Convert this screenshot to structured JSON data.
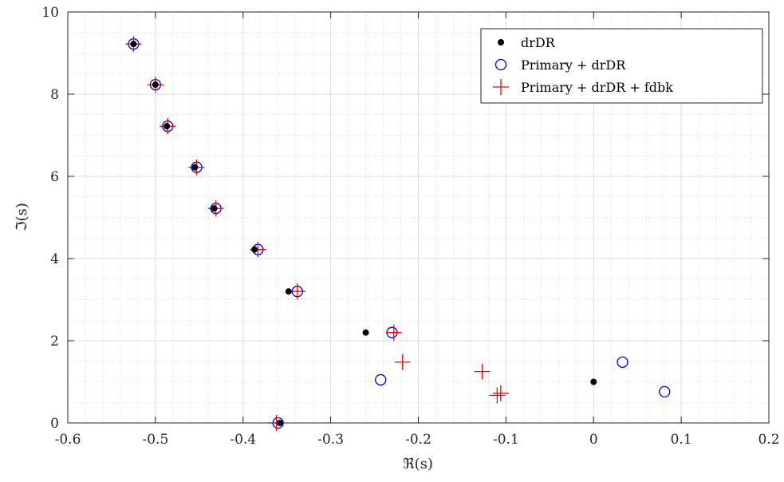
{
  "chart_data": {
    "type": "scatter",
    "xlabel": "ℜ(s)",
    "ylabel": "ℑ(s)",
    "xlim": [
      -0.6,
      0.2
    ],
    "ylim": [
      0,
      10
    ],
    "xticks": [
      -0.6,
      -0.5,
      -0.4,
      -0.3,
      -0.2,
      -0.1,
      0,
      0.1,
      0.2
    ],
    "xtick_labels": [
      "-0.6",
      "-0.5",
      "-0.4",
      "-0.3",
      "-0.2",
      "-0.1",
      "0",
      "0.1",
      "0.2"
    ],
    "yticks": [
      0,
      2,
      4,
      6,
      8,
      10
    ],
    "ytick_labels": [
      "0",
      "2",
      "4",
      "6",
      "8",
      "10"
    ],
    "grid": "major and minor",
    "legend_position": "top-right",
    "series": [
      {
        "name": "drDR",
        "marker": "dot",
        "color": "#000000",
        "points": [
          [
            -0.525,
            9.22
          ],
          [
            -0.5,
            8.23
          ],
          [
            -0.487,
            7.22
          ],
          [
            -0.455,
            6.22
          ],
          [
            -0.433,
            5.22
          ],
          [
            -0.387,
            4.22
          ],
          [
            -0.348,
            3.2
          ],
          [
            -0.26,
            2.2
          ],
          [
            -0.358,
            0.0
          ],
          [
            0.0,
            1.0
          ]
        ]
      },
      {
        "name": "Primary + drDR",
        "marker": "circle",
        "color": "#0000ff",
        "points": [
          [
            -0.525,
            9.22
          ],
          [
            -0.5,
            8.23
          ],
          [
            -0.486,
            7.22
          ],
          [
            -0.453,
            6.22
          ],
          [
            -0.431,
            5.22
          ],
          [
            -0.383,
            4.22
          ],
          [
            -0.338,
            3.2
          ],
          [
            -0.23,
            2.2
          ],
          [
            -0.243,
            1.05
          ],
          [
            -0.36,
            0.0
          ],
          [
            0.033,
            1.48
          ],
          [
            0.081,
            0.76
          ]
        ]
      },
      {
        "name": "Primary + drDR + fdbk",
        "marker": "plus",
        "color": "#ff0000",
        "points": [
          [
            -0.525,
            9.22
          ],
          [
            -0.5,
            8.23
          ],
          [
            -0.486,
            7.22
          ],
          [
            -0.453,
            6.22
          ],
          [
            -0.431,
            5.22
          ],
          [
            -0.383,
            4.22
          ],
          [
            -0.338,
            3.2
          ],
          [
            -0.228,
            2.2
          ],
          [
            -0.218,
            1.48
          ],
          [
            -0.127,
            1.25
          ],
          [
            -0.106,
            0.72
          ],
          [
            -0.11,
            0.67
          ],
          [
            -0.362,
            0.0
          ]
        ]
      }
    ]
  }
}
